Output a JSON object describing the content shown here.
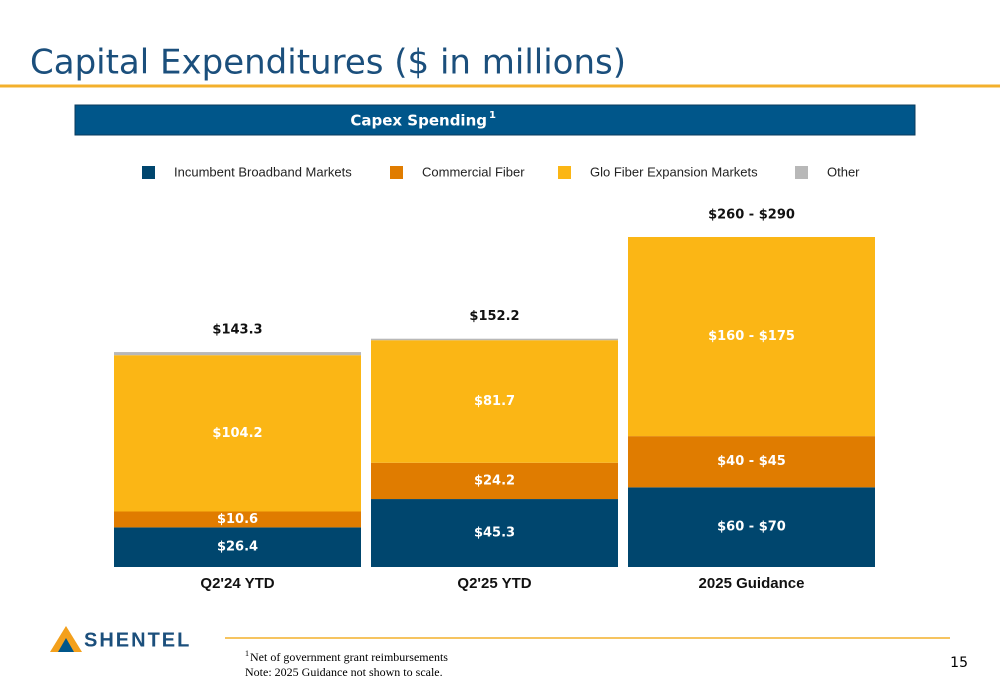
{
  "slide": {
    "title": "Capital Expenditures ($ in millions)",
    "page_number": "15",
    "logo": "SHENTEL",
    "footnotes": [
      {
        "marker": "1",
        "text": "Net of government grant reimbursements"
      },
      "Note: 2025 Guidance not shown to scale."
    ]
  },
  "chart_data": {
    "type": "stacked-bar",
    "title": "Capex Spending",
    "title_marker": "1",
    "categories": [
      "Q2'24 YTD",
      "Q2'25 YTD",
      "2025 Guidance"
    ],
    "series": [
      {
        "name": "Incumbent Broadband Markets",
        "color": "#00466e",
        "values": [
          26.4,
          45.3,
          [
            60,
            70
          ]
        ],
        "value_labels": [
          "$26.4",
          "$45.3",
          "$60 - $70"
        ]
      },
      {
        "name": "Commercial Fiber",
        "color": "#e07c00",
        "values": [
          10.6,
          24.2,
          [
            40,
            45
          ]
        ],
        "value_labels": [
          "$10.6",
          "$24.2",
          "$40 - $45"
        ]
      },
      {
        "name": "Glo Fiber Expansion Markets",
        "color": "#fbb615",
        "values": [
          104.2,
          81.7,
          [
            160,
            175
          ]
        ],
        "value_labels": [
          "$104.2",
          "$81.7",
          "$160 - $175"
        ]
      },
      {
        "name": "Other",
        "color": "#b8b8b8",
        "values": [
          2.1,
          1.0,
          null
        ]
      }
    ],
    "totals": [
      143.3,
      152.2,
      [
        260,
        290
      ]
    ],
    "total_labels": [
      "$143.3",
      "$152.2",
      "$260 - $290"
    ]
  }
}
